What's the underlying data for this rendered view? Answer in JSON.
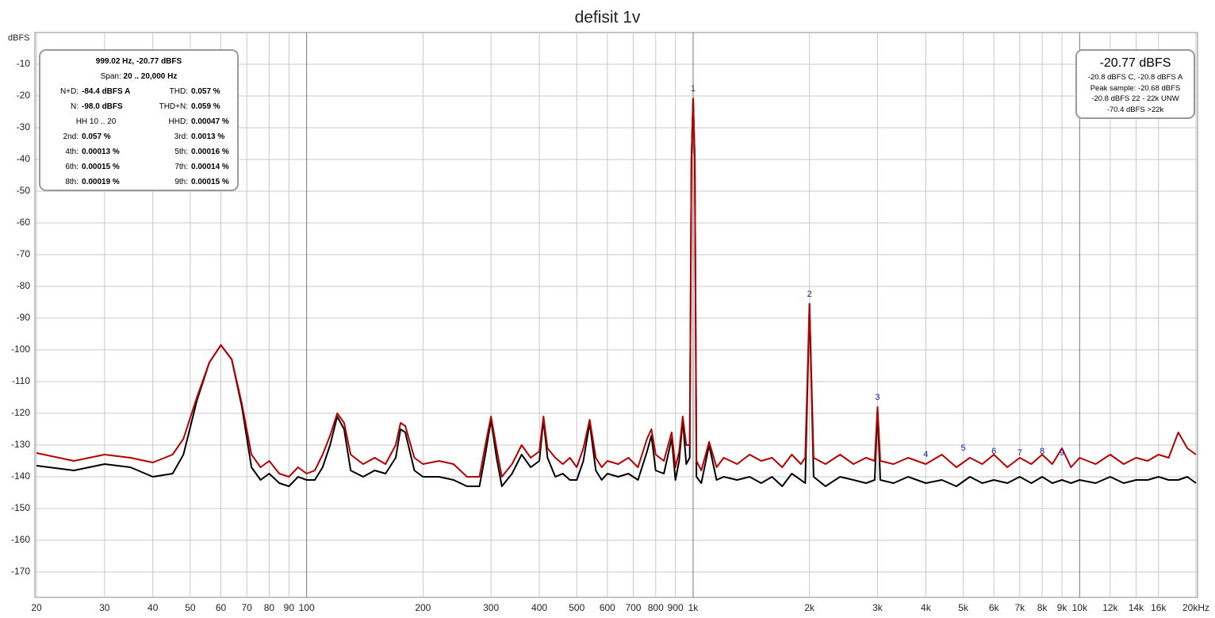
{
  "chart_data": {
    "type": "line",
    "title": "defisit 1v",
    "y_axis_label": "dBFS",
    "xscale": "log",
    "grid": true,
    "xlim": [
      20,
      20000
    ],
    "ylim": [
      -178,
      0
    ],
    "xticks": [
      20,
      30,
      40,
      50,
      60,
      70,
      80,
      90,
      100,
      200,
      300,
      400,
      500,
      600,
      700,
      800,
      900,
      {
        "value": 1000,
        "label": "1k"
      },
      {
        "value": 2000,
        "label": "2k"
      },
      {
        "value": 3000,
        "label": "3k"
      },
      {
        "value": 4000,
        "label": "4k"
      },
      {
        "value": 5000,
        "label": "5k"
      },
      {
        "value": 6000,
        "label": "6k"
      },
      {
        "value": 7000,
        "label": "7k"
      },
      {
        "value": 8000,
        "label": "8k"
      },
      {
        "value": 9000,
        "label": "9k"
      },
      {
        "value": 10000,
        "label": "10k"
      },
      {
        "value": 12000,
        "label": "12k"
      },
      {
        "value": 14000,
        "label": "14k"
      },
      {
        "value": 16000,
        "label": "16k"
      },
      {
        "value": 20000,
        "label": "20kHz"
      }
    ],
    "yticks": [
      -10,
      -20,
      -30,
      -40,
      -50,
      -60,
      -70,
      -80,
      -90,
      -100,
      -110,
      -120,
      -130,
      -140,
      -150,
      -160,
      -170
    ],
    "x": [
      20,
      25,
      30,
      35,
      40,
      45,
      48,
      52,
      56,
      60,
      64,
      68,
      72,
      76,
      80,
      85,
      90,
      95,
      100,
      105,
      110,
      115,
      120,
      125,
      130,
      140,
      150,
      160,
      170,
      175,
      180,
      190,
      200,
      220,
      240,
      260,
      280,
      290,
      300,
      310,
      320,
      340,
      360,
      380,
      400,
      410,
      420,
      440,
      460,
      480,
      500,
      520,
      540,
      560,
      580,
      600,
      640,
      680,
      720,
      760,
      780,
      800,
      840,
      880,
      900,
      920,
      940,
      960,
      980,
      990,
      1000,
      1010,
      1020,
      1050,
      1100,
      1150,
      1200,
      1300,
      1400,
      1500,
      1600,
      1700,
      1800,
      1900,
      1950,
      2000,
      2050,
      2200,
      2400,
      2600,
      2800,
      2950,
      3000,
      3050,
      3300,
      3600,
      4000,
      4400,
      4800,
      5200,
      5600,
      6000,
      6500,
      7000,
      7500,
      8000,
      8500,
      9000,
      9500,
      10000,
      11000,
      12000,
      13000,
      14000,
      15000,
      16000,
      17000,
      18000,
      19000,
      20000
    ],
    "series": [
      {
        "color": "#000000",
        "values": [
          -136.5,
          -138,
          -136,
          -137,
          -140,
          -139,
          -133,
          -116,
          -104,
          -98.5,
          -103,
          -118,
          -137,
          -141,
          -139,
          -142,
          -143,
          -140,
          -141,
          -141,
          -137,
          -130,
          -121,
          -125,
          -138,
          -140,
          -138,
          -139,
          -134,
          -125,
          -126,
          -138,
          -140,
          -140,
          -141,
          -143,
          -143,
          -133,
          -122,
          -134,
          -143,
          -139,
          -133,
          -137,
          -135,
          -122,
          -134,
          -140,
          -139,
          -141,
          -141,
          -135,
          -123,
          -138,
          -141,
          -139,
          -140,
          -139,
          -141,
          -132,
          -127,
          -138,
          -139,
          -128,
          -141,
          -135,
          -122,
          -136,
          -134,
          -40,
          -20.8,
          -40,
          -140,
          -142,
          -130,
          -141,
          -140,
          -141,
          -140,
          -142,
          -140,
          -143,
          -139,
          -141,
          -142,
          -85.5,
          -140,
          -143,
          -140,
          -141,
          -142,
          -141,
          -119,
          -141,
          -142,
          -140,
          -142,
          -141,
          -143,
          -140,
          -142,
          -141,
          -142,
          -140,
          -142,
          -140,
          -142,
          -141,
          -142,
          -141,
          -142,
          -140,
          -142,
          -141,
          -141,
          -140,
          -141,
          -141,
          -140,
          -142
        ]
      },
      {
        "color": "#b40000",
        "values": [
          -132.5,
          -135,
          -133,
          -134,
          -135.5,
          -133,
          -128,
          -115,
          -104,
          -98.5,
          -103,
          -117,
          -133,
          -137,
          -135,
          -139,
          -140,
          -137,
          -139,
          -138,
          -133,
          -127,
          -120,
          -123,
          -133,
          -136,
          -134,
          -136,
          -130,
          -123,
          -124,
          -134,
          -136,
          -135,
          -136,
          -140,
          -140,
          -130,
          -121,
          -131,
          -140,
          -136,
          -130,
          -134,
          -132,
          -121,
          -131,
          -134,
          -136,
          -134,
          -137,
          -131,
          -122,
          -134,
          -137,
          -135,
          -136,
          -134,
          -137,
          -128,
          -125,
          -133,
          -135,
          -126,
          -137,
          -132,
          -121,
          -130,
          -130,
          -40,
          -20.8,
          -40,
          -135,
          -138,
          -129,
          -137,
          -134,
          -136,
          -133,
          -135,
          -134,
          -137,
          -133,
          -136,
          -134,
          -85.5,
          -134,
          -136,
          -133,
          -136,
          -134,
          -135,
          -118,
          -135,
          -136,
          -134,
          -136,
          -133,
          -137,
          -134,
          -136,
          -133,
          -137,
          -134,
          -136,
          -133,
          -136,
          -131,
          -137,
          -134,
          -136,
          -133,
          -136,
          -134,
          -135,
          -133,
          -134,
          -126,
          -131,
          -133
        ]
      }
    ],
    "harmonic_markers": [
      {
        "label": "1",
        "x": 1000,
        "y": -20.8
      },
      {
        "label": "2",
        "x": 2000,
        "y": -85.5
      },
      {
        "label": "3",
        "x": 3000,
        "y": -118
      },
      {
        "label": "4",
        "x": 4000,
        "y": -136
      },
      {
        "label": "5",
        "x": 5000,
        "y": -134
      },
      {
        "label": "6",
        "x": 6000,
        "y": -135
      },
      {
        "label": "7",
        "x": 7000,
        "y": -135.5
      },
      {
        "label": "8",
        "x": 8000,
        "y": -135
      },
      {
        "label": "9",
        "x": 9000,
        "y": -135.5
      }
    ],
    "info_box": {
      "header": "999.02 Hz, -20.77 dBFS",
      "span_label": "Span:",
      "span_value": "20 .. 20,000 Hz",
      "rows": [
        [
          {
            "label": "N+D:",
            "value": "-84.4 dBFS A"
          },
          {
            "label": "THD:",
            "value": "0.057 %"
          }
        ],
        [
          {
            "label": "N:",
            "value": "-98.0 dBFS"
          },
          {
            "label": "THD+N:",
            "value": "0.059 %"
          }
        ],
        [
          {
            "label": "HH 10 .. 20"
          },
          {
            "label": "HHD:",
            "value": "0.00047 %"
          }
        ],
        [
          {
            "label": "2nd:",
            "value": "0.057 %"
          },
          {
            "label": "3rd:",
            "value": "0.0013 %"
          }
        ],
        [
          {
            "label": "4th:",
            "value": "0.00013 %"
          },
          {
            "label": "5th:",
            "value": "0.00016 %"
          }
        ],
        [
          {
            "label": "6th:",
            "value": "0.00015 %"
          },
          {
            "label": "7th:",
            "value": "0.00014 %"
          }
        ],
        [
          {
            "label": "8th:",
            "value": "0.00019 %"
          },
          {
            "label": "9th:",
            "value": "0.00015 %"
          }
        ]
      ]
    },
    "readout_box": {
      "headline": "-20.77 dBFS",
      "lines": [
        "-20.8 dBFS C, -20.8 dBFS A",
        "Peak sample: -20.68 dBFS",
        "-20.8 dBFS 22 - 22k UNW",
        "-70.4 dBFS >22k"
      ]
    }
  }
}
